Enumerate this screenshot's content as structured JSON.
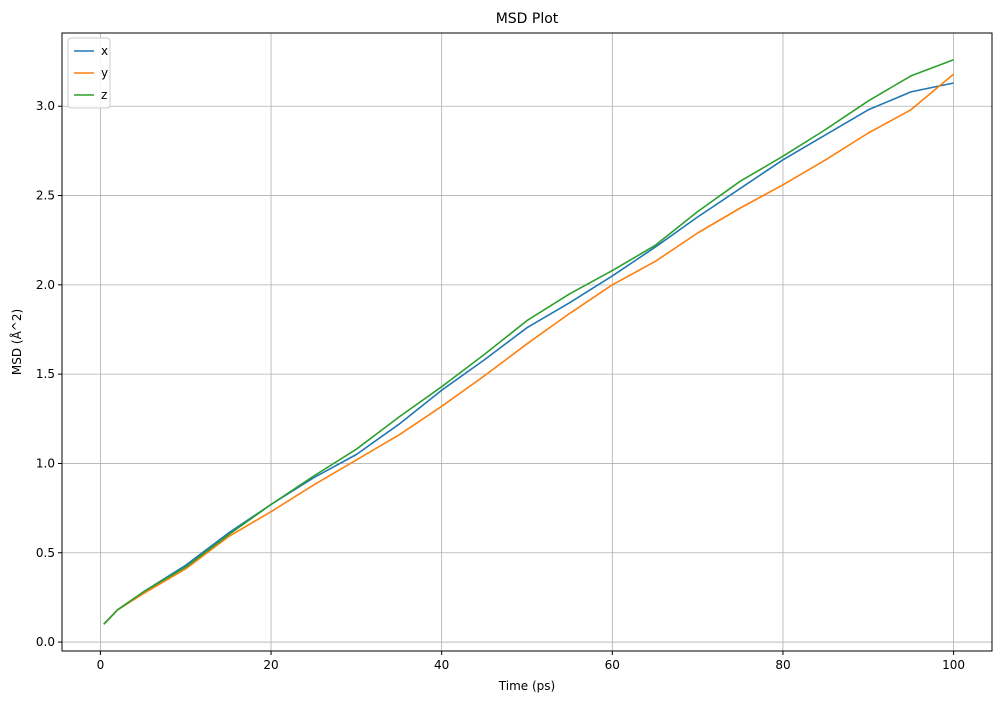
{
  "chart_data": {
    "type": "line",
    "title": "MSD Plot",
    "xlabel": "Time (ps)",
    "ylabel": "MSD (Å^2)",
    "xlim": [
      -4.5,
      104.5
    ],
    "ylim": [
      -0.05,
      3.41
    ],
    "xticks": [
      0,
      20,
      40,
      60,
      80,
      100
    ],
    "yticks": [
      0.0,
      0.5,
      1.0,
      1.5,
      2.0,
      2.5,
      3.0
    ],
    "xtick_labels": [
      "0",
      "20",
      "40",
      "60",
      "80",
      "100"
    ],
    "ytick_labels": [
      "0.0",
      "0.5",
      "1.0",
      "1.5",
      "2.0",
      "2.5",
      "3.0"
    ],
    "grid": true,
    "legend_position": "upper-left",
    "x": [
      0.4,
      2,
      5,
      10,
      15,
      20,
      25,
      30,
      35,
      40,
      45,
      50,
      55,
      60,
      65,
      70,
      75,
      80,
      85,
      90,
      95,
      100
    ],
    "series": [
      {
        "name": "x",
        "color": "#1f77b4",
        "values": [
          0.1,
          0.18,
          0.28,
          0.43,
          0.61,
          0.77,
          0.92,
          1.05,
          1.22,
          1.41,
          1.58,
          1.76,
          1.9,
          2.05,
          2.21,
          2.38,
          2.54,
          2.7,
          2.84,
          2.98,
          3.08,
          3.13
        ]
      },
      {
        "name": "y",
        "color": "#ff7f0e",
        "values": [
          0.1,
          0.18,
          0.27,
          0.41,
          0.59,
          0.73,
          0.88,
          1.02,
          1.16,
          1.32,
          1.49,
          1.67,
          1.84,
          2.0,
          2.13,
          2.29,
          2.43,
          2.56,
          2.7,
          2.85,
          2.98,
          3.18
        ]
      },
      {
        "name": "z",
        "color": "#2ca02c",
        "values": [
          0.1,
          0.18,
          0.28,
          0.42,
          0.6,
          0.77,
          0.93,
          1.08,
          1.26,
          1.43,
          1.61,
          1.8,
          1.95,
          2.08,
          2.22,
          2.41,
          2.58,
          2.72,
          2.87,
          3.03,
          3.17,
          3.26
        ]
      }
    ]
  }
}
